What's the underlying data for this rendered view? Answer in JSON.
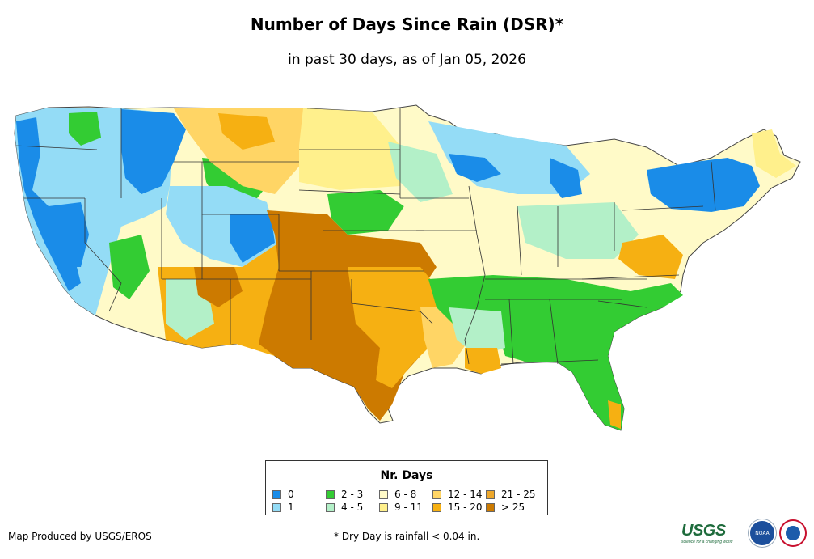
{
  "title": "Number of Days Since Rain (DSR)*",
  "subtitle": "in past 30 days, as of Jan 05, 2026",
  "legend": {
    "title": "Nr. Days",
    "items": [
      {
        "label": "0",
        "color": "#1a8ce8"
      },
      {
        "label": "1",
        "color": "#94dcf6"
      },
      {
        "label": "2 - 3",
        "color": "#33cc33"
      },
      {
        "label": "4 - 5",
        "color": "#b3f0c8"
      },
      {
        "label": "6 - 8",
        "color": "#fffac8"
      },
      {
        "label": "9 - 11",
        "color": "#fff08c"
      },
      {
        "label": "12 - 14",
        "color": "#ffd565"
      },
      {
        "label": "15 - 20",
        "color": "#f6b012"
      },
      {
        "label": "21 - 25",
        "color": "#eea82b"
      },
      {
        "label": "> 25",
        "color": "#cc7a00"
      }
    ]
  },
  "footer": {
    "credit": "Map Produced by USGS/EROS",
    "note": "* Dry Day is rainfall < 0.04 in."
  },
  "logos": {
    "usgs": "USGS",
    "usgs_tagline": "science for a changing world",
    "noaa": "NOAA"
  }
}
